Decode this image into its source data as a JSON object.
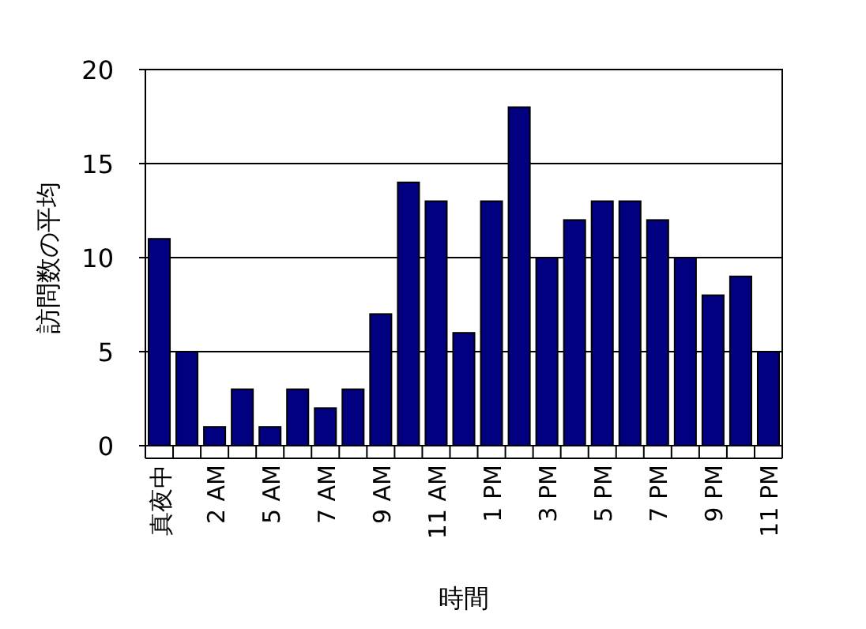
{
  "chart_data": {
    "type": "bar",
    "xlabel": "時間",
    "ylabel": "訪問数の平均",
    "categories": [
      "真夜中",
      null,
      "2 AM",
      null,
      "5 AM",
      null,
      "7 AM",
      null,
      "9 AM",
      null,
      "11 AM",
      null,
      "1 PM",
      null,
      "3 PM",
      null,
      "5 PM",
      null,
      "7 PM",
      null,
      "9 PM",
      null,
      "11 PM"
    ],
    "values": [
      11,
      5,
      1,
      3,
      1,
      3,
      2,
      3,
      7,
      14,
      13,
      6,
      13,
      18,
      10,
      12,
      13,
      13,
      12,
      10,
      8,
      9,
      5
    ],
    "color": "#000080",
    "ylim": [
      0,
      20
    ],
    "yticks": [
      0,
      5,
      10,
      15,
      20
    ],
    "grid": "y"
  }
}
